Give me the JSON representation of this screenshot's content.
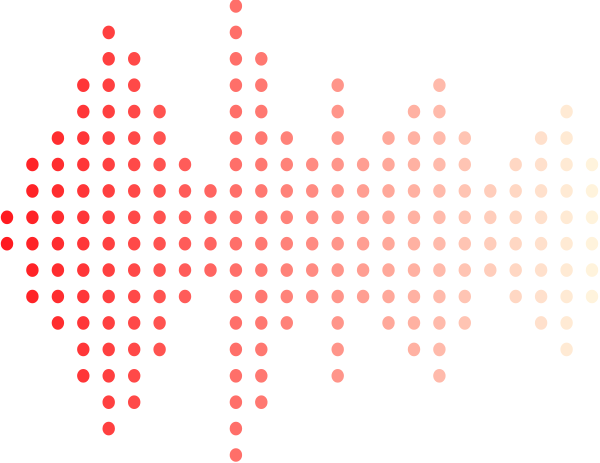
{
  "graphic": {
    "kind": "dotted-sound-wave",
    "column_dot_counts": [
      2,
      6,
      8,
      12,
      16,
      14,
      10,
      6,
      4,
      18,
      14,
      8,
      6,
      12,
      6,
      8,
      10,
      12,
      8,
      4,
      6,
      8,
      10,
      6
    ],
    "max_dots_per_column": 18,
    "color_start": "#ff1a1f",
    "color_end": "#fff3dc"
  }
}
